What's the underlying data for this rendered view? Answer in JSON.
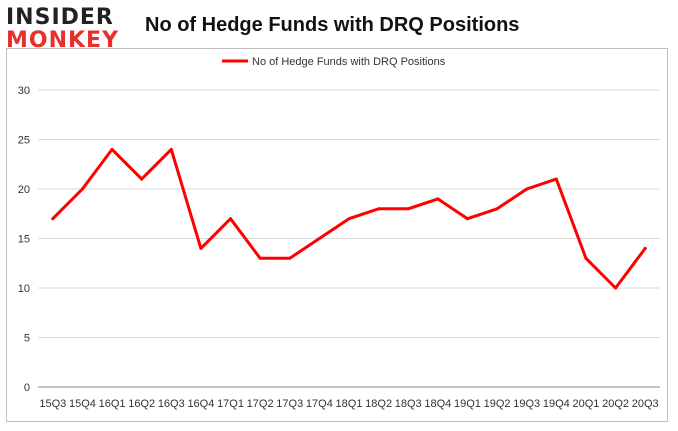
{
  "logo": {
    "line1": "INSIDER",
    "line2": "MONKEY"
  },
  "chart_data": {
    "type": "line",
    "title": "No of Hedge Funds with DRQ Positions",
    "categories": [
      "15Q3",
      "15Q4",
      "16Q1",
      "16Q2",
      "16Q3",
      "16Q4",
      "17Q1",
      "17Q2",
      "17Q3",
      "17Q4",
      "18Q1",
      "18Q2",
      "18Q3",
      "18Q4",
      "19Q1",
      "19Q2",
      "19Q3",
      "19Q4",
      "20Q1",
      "20Q2",
      "20Q3"
    ],
    "series": [
      {
        "name": "No of Hedge Funds with DRQ Positions",
        "color": "#ff0000",
        "values": [
          17,
          20,
          24,
          21,
          24,
          14,
          17,
          13,
          13,
          15,
          17,
          18,
          18,
          19,
          17,
          18,
          20,
          21,
          13,
          10,
          14
        ]
      }
    ],
    "y_ticks": [
      0,
      5,
      10,
      15,
      20,
      25,
      30
    ],
    "ylim": [
      0,
      30
    ],
    "xlabel": "",
    "ylabel": "",
    "grid": true,
    "legend_position": "top-center"
  }
}
